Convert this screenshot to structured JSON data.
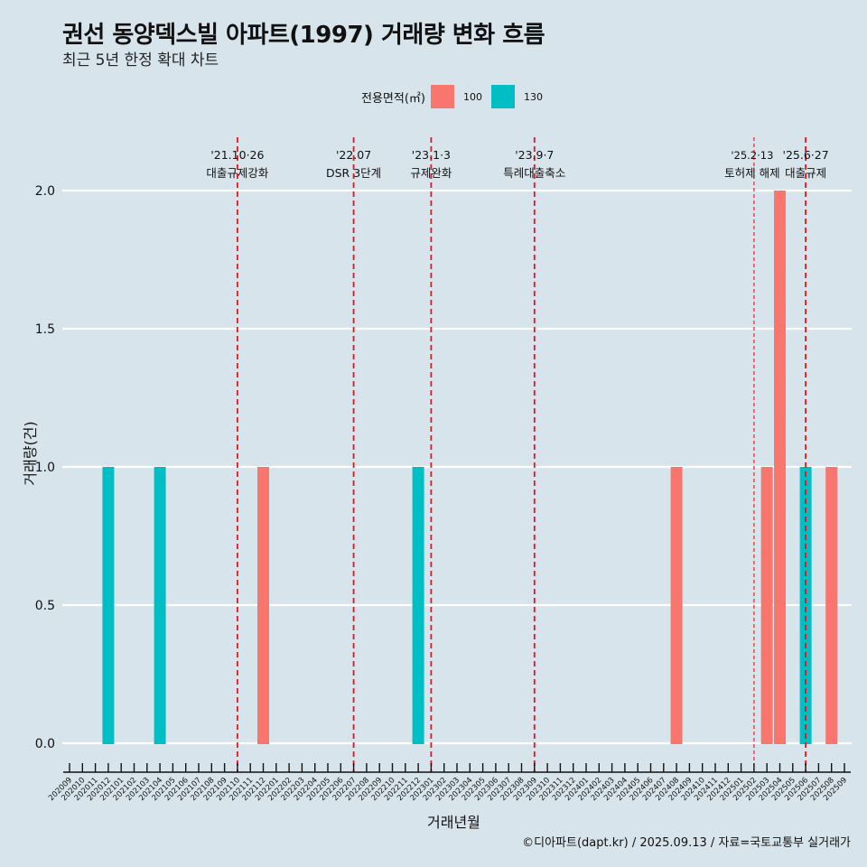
{
  "header": {
    "title": "권선 동양덱스빌 아파트(1997) 거래량 변화 흐름",
    "subtitle": "최근 5년 한정 확대 차트"
  },
  "legend": {
    "title": "전용면적(㎡)",
    "items": [
      {
        "label": "100",
        "color": "#f8766d"
      },
      {
        "label": "130",
        "color": "#00bfc4"
      }
    ]
  },
  "caption": "©디아파트(dapt.kr) / 2025.09.13 / 자료=국토교통부 실거래가",
  "chart_data": {
    "type": "bar",
    "title": "권선 동양덱스빌 아파트(1997) 거래량 변화 흐름",
    "subtitle": "최근 5년 한정 확대 차트",
    "xlabel": "거래년월",
    "ylabel": "거래량(건)",
    "ylim": [
      0,
      2
    ],
    "yticks": [
      "0.0",
      "0.5",
      "1.0",
      "1.5",
      "2.0"
    ],
    "ytick_values": [
      0,
      0.5,
      1.0,
      1.5,
      2.0
    ],
    "grid": "horizontal",
    "legend_position": "top",
    "categories": [
      "202009",
      "202010",
      "202011",
      "202012",
      "202101",
      "202102",
      "202103",
      "202104",
      "202105",
      "202106",
      "202107",
      "202108",
      "202109",
      "202110",
      "202111",
      "202112",
      "202201",
      "202202",
      "202203",
      "202204",
      "202205",
      "202206",
      "202207",
      "202208",
      "202209",
      "202210",
      "202211",
      "202212",
      "202301",
      "202302",
      "202303",
      "202304",
      "202305",
      "202306",
      "202307",
      "202308",
      "202309",
      "202310",
      "202311",
      "202312",
      "202401",
      "202402",
      "202403",
      "202404",
      "202405",
      "202406",
      "202407",
      "202408",
      "202409",
      "202410",
      "202411",
      "202412",
      "202501",
      "202502",
      "202503",
      "202504",
      "202505",
      "202506",
      "202507",
      "202508",
      "202509"
    ],
    "series": [
      {
        "name": "100",
        "color": "#f8766d",
        "points": [
          {
            "x": "202112",
            "y": 1
          },
          {
            "x": "202408",
            "y": 1
          },
          {
            "x": "202503",
            "y": 1
          },
          {
            "x": "202504",
            "y": 2
          },
          {
            "x": "202508",
            "y": 1
          }
        ]
      },
      {
        "name": "130",
        "color": "#00bfc4",
        "points": [
          {
            "x": "202012",
            "y": 1
          },
          {
            "x": "202104",
            "y": 1
          },
          {
            "x": "202212",
            "y": 1
          },
          {
            "x": "202506",
            "y": 1
          }
        ]
      }
    ],
    "annotations": [
      {
        "x": "202110",
        "date": "'21.10·26",
        "label": "대출규제강화",
        "style": "thick"
      },
      {
        "x": "202207",
        "date": "'22.07",
        "label": "DSR 3단계",
        "style": "thick"
      },
      {
        "x": "202301",
        "date": "'23.1·3",
        "label": "규제완화",
        "style": "thick"
      },
      {
        "x": "202309",
        "date": "'23.9·7",
        "label": "특례대출축소",
        "style": "thick"
      },
      {
        "x": "202502",
        "date": "'25.2·13",
        "label": "토허제 해제",
        "style": "thin"
      },
      {
        "x": "202506",
        "date": "'25.6·27",
        "label": "대출규제",
        "style": "thick"
      }
    ],
    "annotation_color": "#e8141c"
  }
}
